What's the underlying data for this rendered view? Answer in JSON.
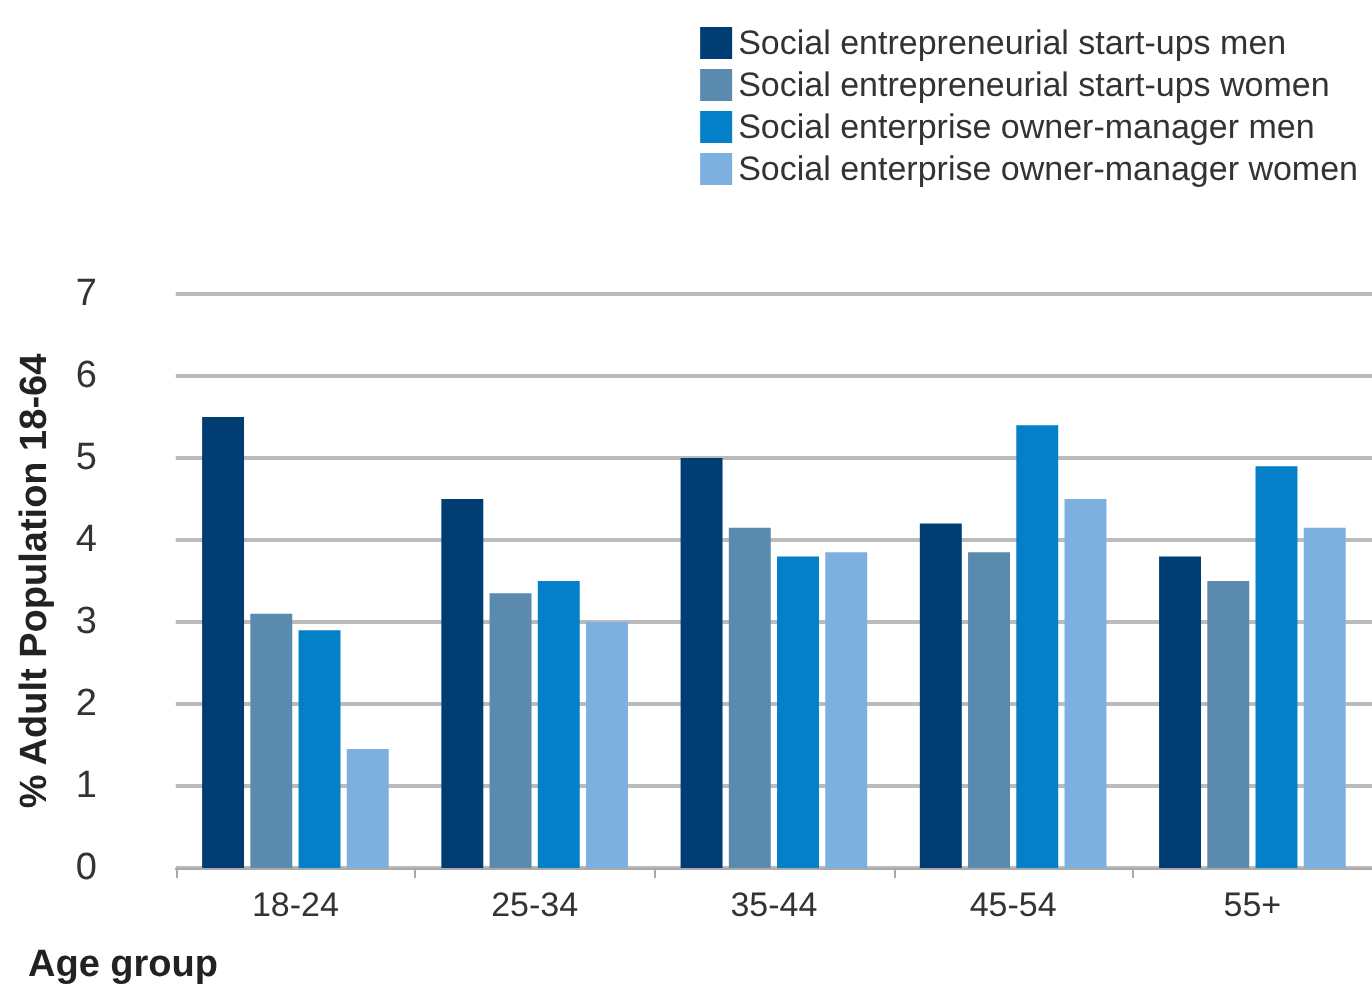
{
  "chart_data": {
    "type": "bar",
    "xlabel": "Age group",
    "ylabel": "% Adult Population 18-64",
    "categories": [
      "18-24",
      "25-34",
      "35-44",
      "45-54",
      "55+"
    ],
    "series": [
      {
        "name": "Social entrepreneurial start-ups men",
        "color": "#003d73",
        "values": [
          5.5,
          4.5,
          5.0,
          4.2,
          3.8
        ]
      },
      {
        "name": "Social entrepreneurial start-ups women",
        "color": "#5a8aad",
        "values": [
          3.1,
          3.35,
          4.15,
          3.85,
          3.5
        ]
      },
      {
        "name": "Social enterprise owner-manager men",
        "color": "#0480c8",
        "values": [
          2.9,
          3.5,
          3.8,
          5.4,
          4.9
        ]
      },
      {
        "name": "Social enterprise owner-manager women",
        "color": "#7bb0df",
        "values": [
          1.45,
          3.0,
          3.85,
          4.5,
          4.15
        ]
      }
    ],
    "ylim": [
      0,
      7
    ],
    "yticks": [
      0,
      1,
      2,
      3,
      4,
      5,
      6,
      7
    ],
    "grid": "y",
    "legend": "top right"
  }
}
